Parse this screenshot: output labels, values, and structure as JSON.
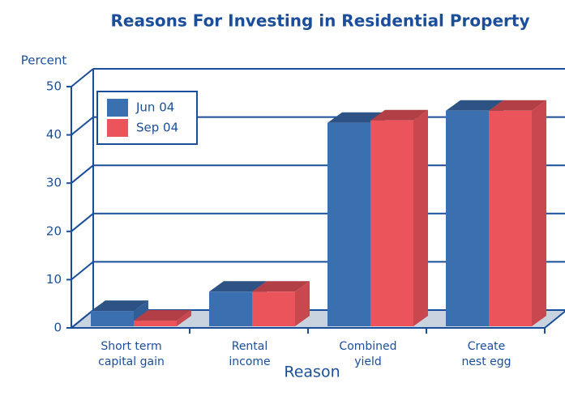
{
  "chart_data": {
    "type": "bar3d",
    "title": "Reasons For Investing in Residential Property",
    "y_label": "Percent",
    "x_label": "Reason",
    "categories": [
      [
        "Short term",
        "capital gain"
      ],
      [
        "Rental",
        "income"
      ],
      [
        "Combined",
        "yield"
      ],
      [
        "Create",
        "nest egg"
      ]
    ],
    "series": [
      {
        "name": "Jun 04",
        "color": "#3a6fb0",
        "values": [
          3.5,
          7.5,
          42.5,
          45
        ]
      },
      {
        "name": "Sep 04",
        "color": "#ec545c",
        "values": [
          1.5,
          7.5,
          43,
          45
        ]
      }
    ],
    "ylim": [
      0,
      50
    ],
    "yticks": [
      0,
      10,
      20,
      30,
      40,
      50
    ],
    "grid": true
  }
}
